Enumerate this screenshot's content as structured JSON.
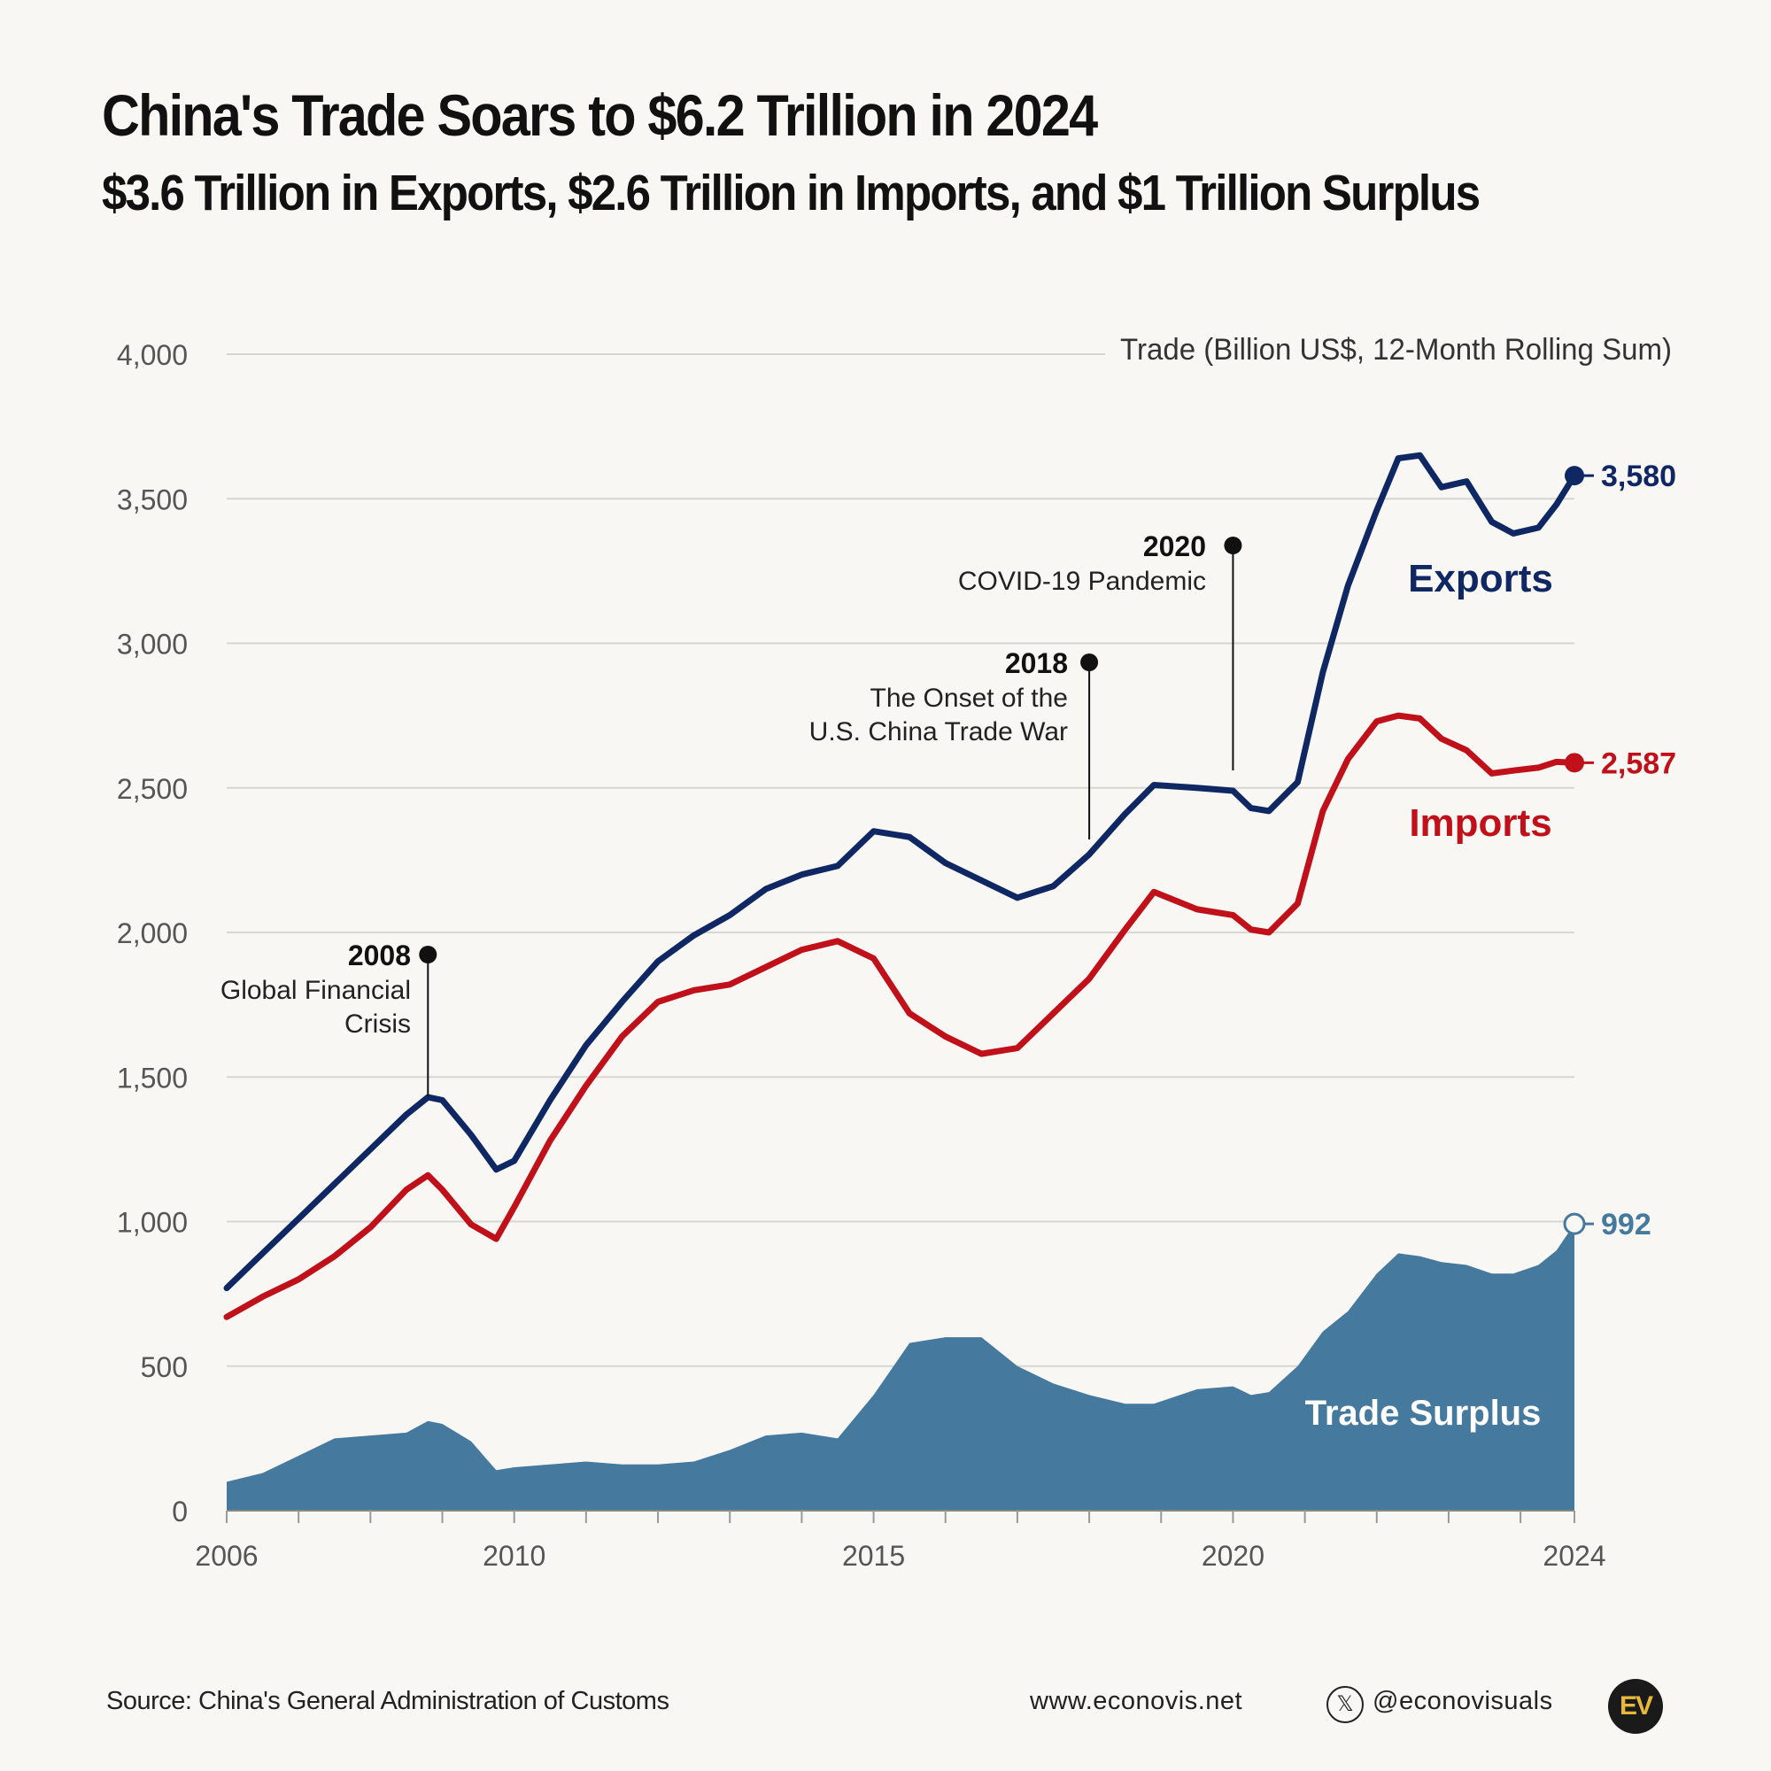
{
  "header": {
    "title": "China's Trade Soars to $6.2 Trillion in 2024",
    "subtitle": "$3.6 Trillion in Exports, $2.6 Trillion in Imports, and $1 Trillion Surplus"
  },
  "footer": {
    "source": "Source: China's General Administration of Customs",
    "website": "www.econovis.net",
    "social_icon": "x-logo-icon",
    "handle": "@econovisuals",
    "logo_text": "EV"
  },
  "chart_data": {
    "type": "line",
    "ylabel": "Trade (Billion US$, 12-Month Rolling Sum)",
    "ylim": [
      0,
      4000
    ],
    "yticks": [
      0,
      500,
      1000,
      1500,
      2000,
      2500,
      3000,
      3500,
      4000
    ],
    "ytick_labels": [
      "0",
      "500",
      "1,000",
      "1,500",
      "2,000",
      "2,500",
      "3,000",
      "3,500",
      "4,000"
    ],
    "xlim": [
      2006,
      2024.75
    ],
    "xticks": [
      2006,
      2010,
      2015,
      2020,
      2024
    ],
    "xtick_labels": [
      "2006",
      "2010",
      "2015",
      "2020",
      "2024"
    ],
    "grid": true,
    "x": [
      2006.0,
      2006.5,
      2007.0,
      2007.5,
      2008.0,
      2008.5,
      2008.8,
      2009.0,
      2009.4,
      2009.75,
      2010.0,
      2010.5,
      2011.0,
      2011.5,
      2012.0,
      2012.5,
      2013.0,
      2013.5,
      2014.0,
      2014.5,
      2015.0,
      2015.5,
      2016.0,
      2016.5,
      2017.0,
      2017.5,
      2018.0,
      2018.5,
      2018.9,
      2019.5,
      2020.0,
      2020.25,
      2020.5,
      2020.9,
      2021.25,
      2021.6,
      2022.0,
      2022.3,
      2022.6,
      2022.9,
      2023.25,
      2023.6,
      2023.9,
      2024.25,
      2024.5,
      2024.75
    ],
    "series": [
      {
        "name": "Exports",
        "color": "#0f2864",
        "end_label": "3,580",
        "values": [
          770,
          890,
          1010,
          1130,
          1250,
          1370,
          1430,
          1420,
          1300,
          1180,
          1210,
          1420,
          1610,
          1760,
          1900,
          1990,
          2060,
          2150,
          2200,
          2230,
          2350,
          2330,
          2240,
          2180,
          2120,
          2160,
          2270,
          2410,
          2510,
          2500,
          2490,
          2430,
          2420,
          2520,
          2900,
          3200,
          3460,
          3640,
          3650,
          3540,
          3560,
          3420,
          3380,
          3400,
          3480,
          3580
        ]
      },
      {
        "name": "Imports",
        "color": "#c0101a",
        "end_label": "2,587",
        "values": [
          670,
          740,
          800,
          880,
          980,
          1110,
          1160,
          1110,
          990,
          940,
          1050,
          1280,
          1470,
          1640,
          1760,
          1800,
          1820,
          1880,
          1940,
          1970,
          1910,
          1720,
          1640,
          1580,
          1600,
          1720,
          1840,
          2010,
          2140,
          2080,
          2060,
          2010,
          2000,
          2100,
          2420,
          2600,
          2730,
          2750,
          2740,
          2670,
          2630,
          2550,
          2560,
          2570,
          2590,
          2587
        ]
      },
      {
        "name": "Trade Surplus",
        "color": "#46799e",
        "end_label": "992",
        "values": [
          100,
          130,
          190,
          250,
          260,
          270,
          310,
          300,
          240,
          140,
          150,
          160,
          170,
          160,
          160,
          170,
          210,
          260,
          270,
          250,
          400,
          580,
          600,
          600,
          500,
          440,
          400,
          370,
          370,
          420,
          430,
          400,
          410,
          500,
          620,
          690,
          820,
          890,
          880,
          860,
          850,
          820,
          820,
          850,
          900,
          992
        ]
      }
    ],
    "annotations": [
      {
        "year": "2008",
        "text_lines": [
          "Global Financial",
          "Crisis"
        ]
      },
      {
        "year": "2018",
        "text_lines": [
          "The Onset of the",
          "U.S. China Trade War"
        ]
      },
      {
        "year": "2020",
        "text_lines": [
          "COVID-19 Pandemic"
        ]
      }
    ]
  }
}
